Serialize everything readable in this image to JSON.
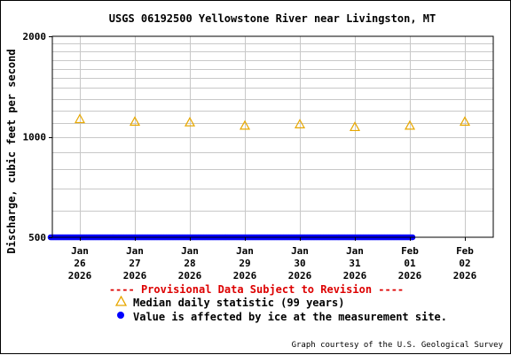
{
  "chart_data": {
    "type": "scatter",
    "title": "USGS 06192500 Yellowstone River near Livingston, MT",
    "ylabel": "Discharge, cubic feet per second",
    "y_scale": "log",
    "ylim": [
      500,
      2000
    ],
    "y_tick_labels": [
      "500",
      "1000",
      "2000"
    ],
    "x_ticks": [
      {
        "date": "2026-01-26",
        "month": "Jan",
        "day": "26",
        "year": "2026"
      },
      {
        "date": "2026-01-27",
        "month": "Jan",
        "day": "27",
        "year": "2026"
      },
      {
        "date": "2026-01-28",
        "month": "Jan",
        "day": "28",
        "year": "2026"
      },
      {
        "date": "2026-01-29",
        "month": "Jan",
        "day": "29",
        "year": "2026"
      },
      {
        "date": "2026-01-30",
        "month": "Jan",
        "day": "30",
        "year": "2026"
      },
      {
        "date": "2026-01-31",
        "month": "Jan",
        "day": "31",
        "year": "2026"
      },
      {
        "date": "2026-02-01",
        "month": "Feb",
        "day": "01",
        "year": "2026"
      },
      {
        "date": "2026-02-02",
        "month": "Feb",
        "day": "02",
        "year": "2026"
      }
    ],
    "series": [
      {
        "name": "Median daily statistic (99 years)",
        "marker": "triangle",
        "color": "#e8a800",
        "x": [
          "2026-01-26",
          "2026-01-27",
          "2026-01-28",
          "2026-01-29",
          "2026-01-30",
          "2026-01-31",
          "2026-02-01",
          "2026-02-02"
        ],
        "y": [
          1130,
          1110,
          1105,
          1080,
          1090,
          1070,
          1080,
          1110
        ]
      },
      {
        "name": "Value is affected by ice at the measurement site.",
        "marker": "dot",
        "color": "#0000ff",
        "x_range": [
          "2026-01-25",
          "2026-02-01"
        ],
        "y_level": 500
      }
    ],
    "grid": true,
    "legend_placement": "below plot"
  },
  "provisional_note": "---- Provisional Data Subject to Revision ----",
  "credit": "Graph courtesy of the U.S. Geological Survey",
  "colors": {
    "provisional": "#dd0000",
    "median": "#e8a800",
    "ice": "#0000ff",
    "grid": "#c8c8c8"
  }
}
